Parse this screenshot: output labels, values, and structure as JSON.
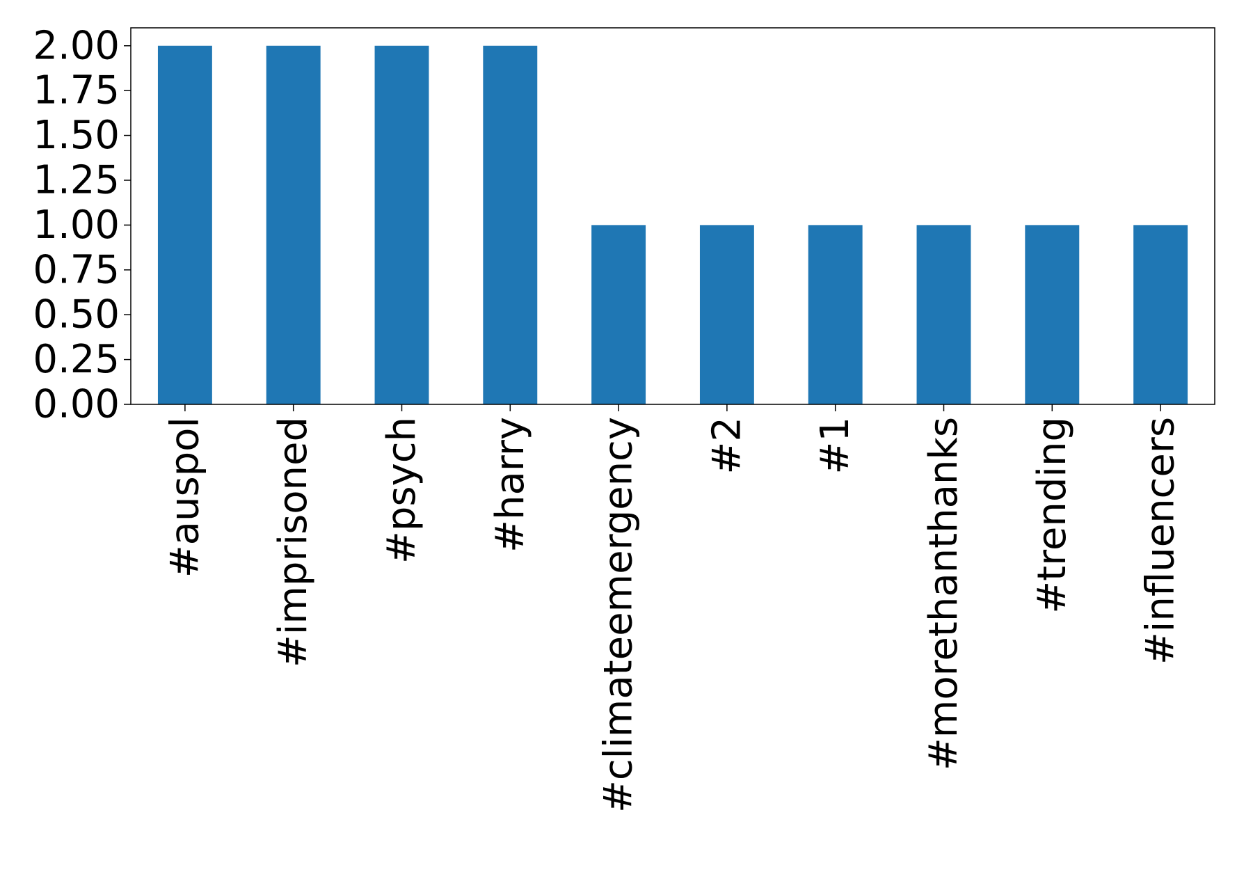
{
  "chart_data": {
    "type": "bar",
    "title": "",
    "xlabel": "",
    "ylabel": "",
    "categories": [
      "#auspol",
      "#imprisoned",
      "#psych",
      "#harry",
      "#climateemergency",
      "#2",
      "#1",
      "#morethanthanks",
      "#trending",
      "#influencers"
    ],
    "values": [
      2,
      2,
      2,
      2,
      1,
      1,
      1,
      1,
      1,
      1
    ],
    "ylim": [
      0,
      2.1
    ],
    "yticks": [
      "0.00",
      "0.25",
      "0.50",
      "0.75",
      "1.00",
      "1.25",
      "1.50",
      "1.75",
      "2.00"
    ],
    "grid": false,
    "legend": "none",
    "bar_color": "#1f77b4"
  }
}
